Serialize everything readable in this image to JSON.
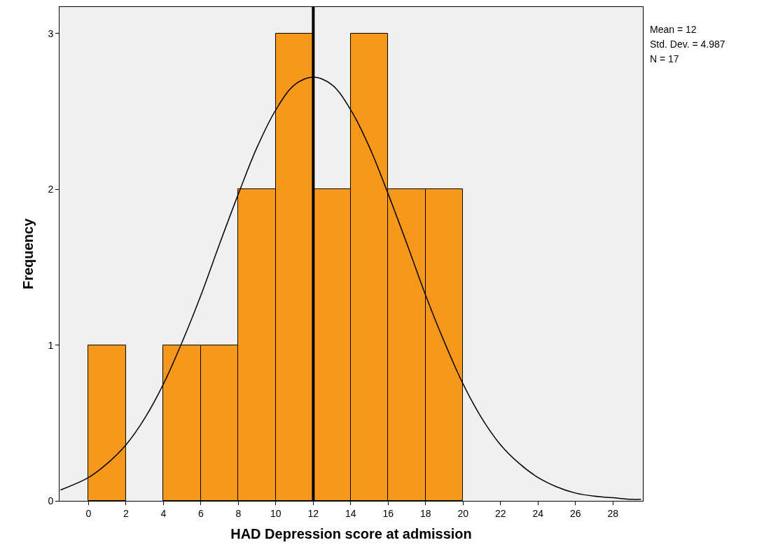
{
  "chart_data": {
    "type": "histogram",
    "xlabel": "HAD Depression score at admission",
    "ylabel": "Frequency",
    "bins": [
      0,
      2,
      4,
      6,
      8,
      10,
      12,
      14,
      16,
      18,
      20
    ],
    "values": [
      1,
      0,
      1,
      1,
      2,
      3,
      2,
      3,
      2,
      2
    ],
    "color": "#f7981d",
    "series": [
      {
        "type": "line",
        "color": "#000000",
        "x": [
          -1.5,
          0,
          1,
          2,
          3,
          4,
          5,
          6,
          7,
          8,
          9,
          10,
          11,
          12,
          13,
          14,
          15,
          16,
          17,
          18,
          19,
          20,
          21,
          22,
          23,
          24,
          25,
          26,
          27,
          28,
          29,
          29.5
        ],
        "values": [
          0.07,
          0.15,
          0.24,
          0.36,
          0.53,
          0.75,
          1.02,
          1.32,
          1.65,
          1.97,
          2.27,
          2.51,
          2.67,
          2.72,
          2.67,
          2.51,
          2.27,
          1.97,
          1.65,
          1.32,
          1.02,
          0.75,
          0.53,
          0.36,
          0.24,
          0.15,
          0.09,
          0.05,
          0.03,
          0.02,
          0.01,
          0.01
        ]
      }
    ],
    "ref_lines": [
      {
        "axis": "x",
        "value": 12,
        "color": "#000000"
      }
    ],
    "annotations": [
      "Mean = 12",
      "Std. Dev. = 4.987",
      "N = 17"
    ],
    "xlim": [
      -1.55,
      29.6
    ],
    "xticks": [
      0,
      2,
      4,
      6,
      8,
      10,
      12,
      14,
      16,
      18,
      20,
      22,
      24,
      26,
      28
    ],
    "ylim": [
      0,
      3.17
    ],
    "yticks": [
      0,
      1,
      2,
      3
    ],
    "grid": false
  }
}
